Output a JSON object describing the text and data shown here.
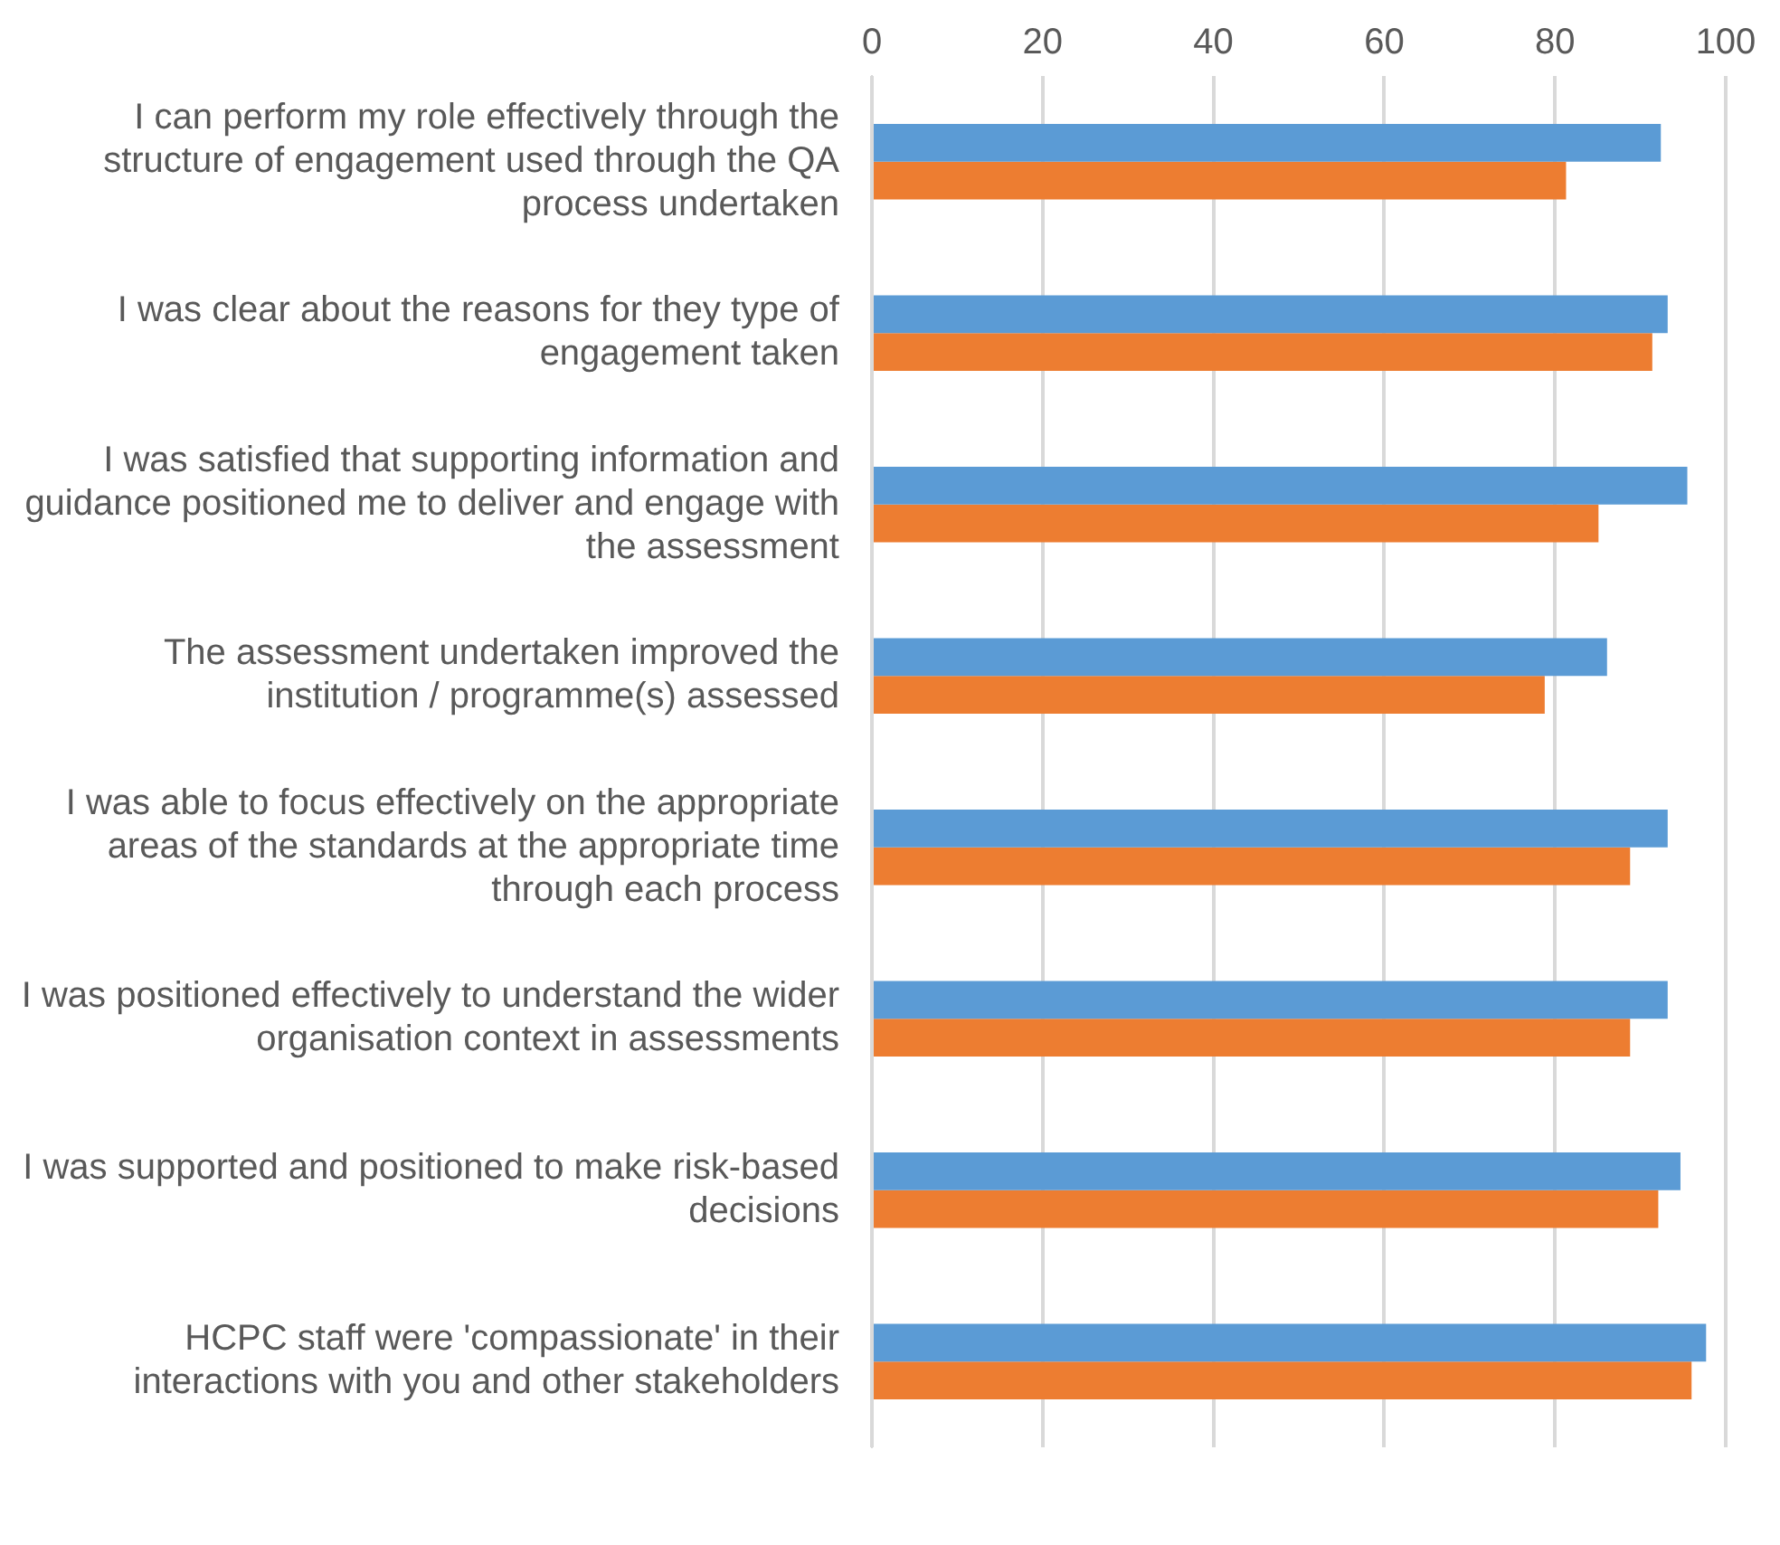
{
  "chart_data": {
    "type": "bar",
    "orientation": "horizontal",
    "categories": [
      "I can perform my role effectively through the structure of engagement used through the QA process undertaken",
      "I was clear about the reasons for they type of engagement taken",
      "I was satisfied that supporting information and guidance positioned me to deliver and engage with the assessment",
      "The assessment undertaken improved the institution / programme(s) assessed",
      "I was able to focus effectively on the appropriate areas of the standards at the appropriate time through each process",
      "I was positioned effectively to understand the wider organisation context in assessments",
      "I was supported and positioned to make risk-based decisions",
      "HCPC staff were 'compassionate' in their interactions with you and other stakeholders"
    ],
    "series": [
      {
        "color": "#5b9bd5",
        "values": [
          92.4,
          93.2,
          95.5,
          86.1,
          93.2,
          93.2,
          94.7,
          97.7
        ]
      },
      {
        "color": "#ed7d31",
        "values": [
          81.3,
          91.4,
          85.1,
          78.8,
          88.8,
          88.8,
          92.1,
          96.0
        ]
      }
    ],
    "xlim": [
      0,
      100
    ],
    "xticks": [
      0,
      20,
      40,
      60,
      80,
      100
    ],
    "grid": "x",
    "legend": false
  }
}
